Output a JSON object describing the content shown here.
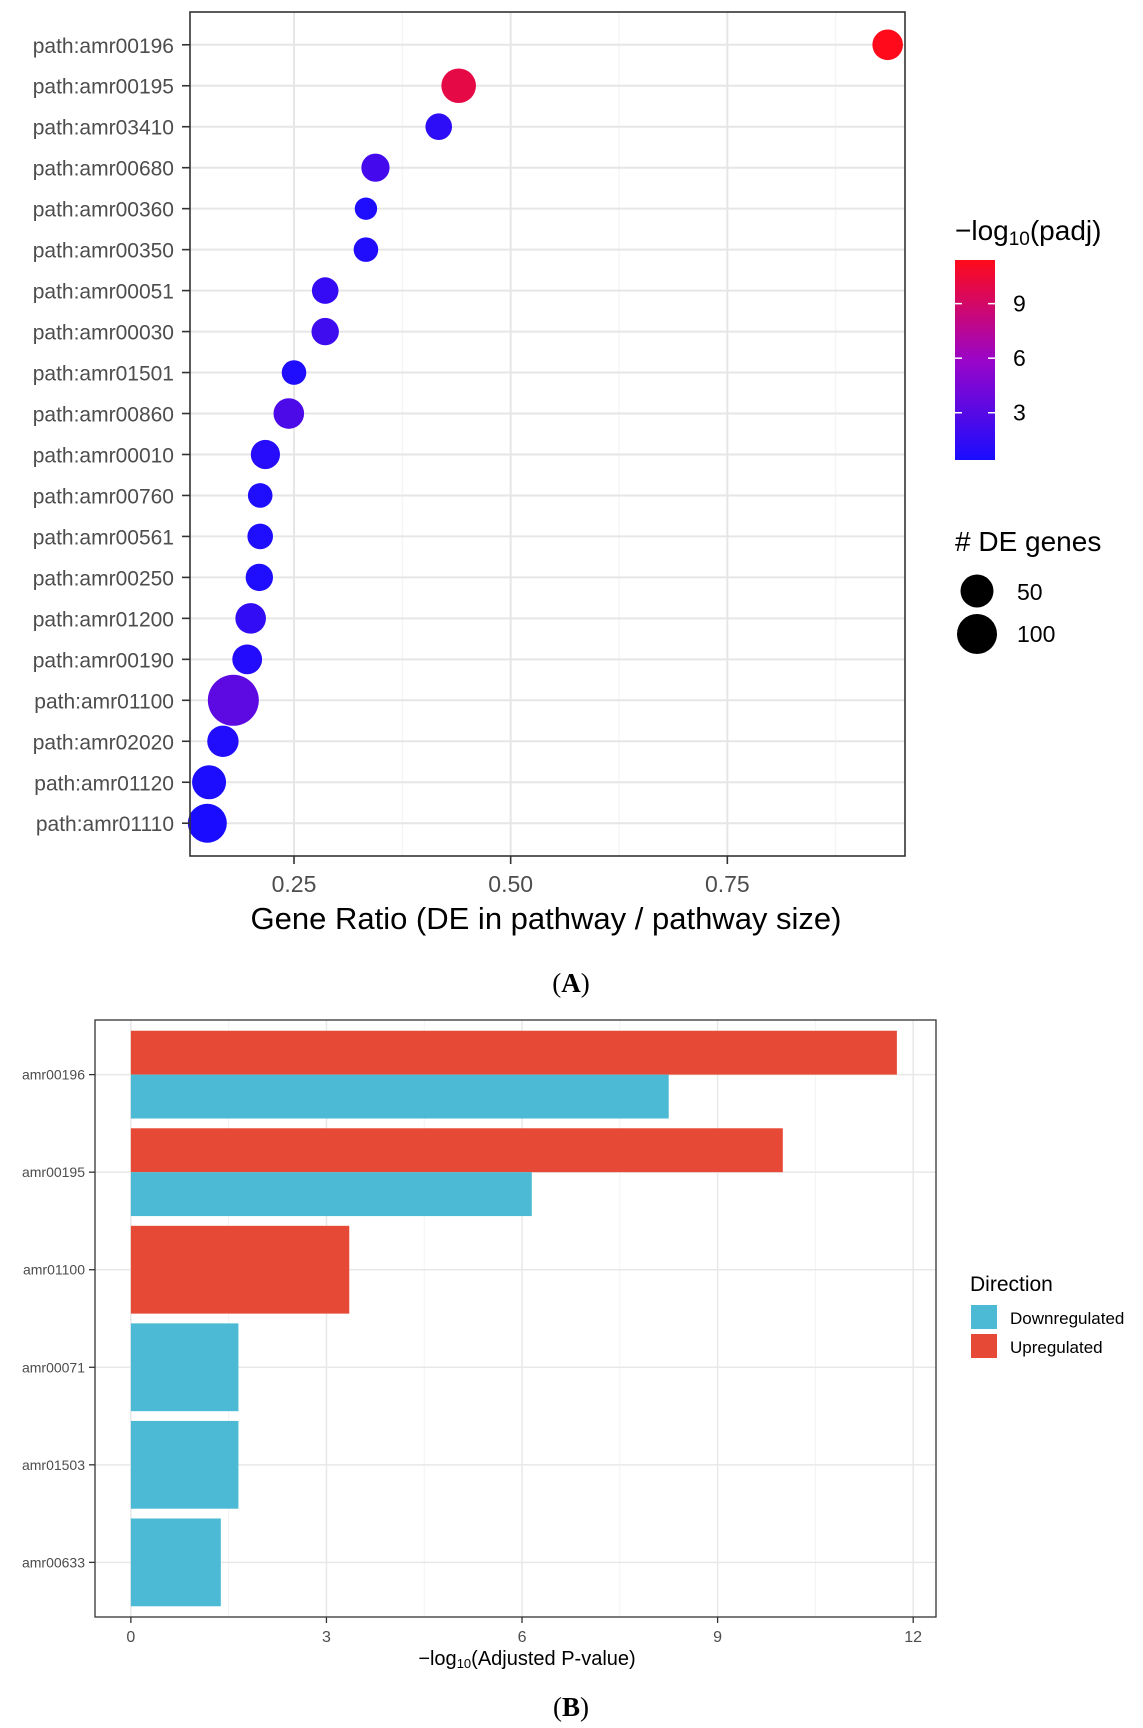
{
  "panel_a": {
    "panel_label": "A",
    "legend_color_title_prefix": "−log",
    "legend_color_title_sub": "10",
    "legend_color_title_suffix": "(padj)",
    "legend_color_ticks": [
      "9",
      "6",
      "3"
    ],
    "legend_size_title": "# DE genes",
    "legend_size_labels": [
      "50",
      "100"
    ]
  },
  "panel_b": {
    "panel_label": "B",
    "xlabel_prefix": "−log",
    "xlabel_sub": "10",
    "xlabel_suffix": "(Adjusted P-value)",
    "legend_title": "Direction",
    "legend_items": [
      "Downregulated",
      "Upregulated"
    ]
  },
  "colors": {
    "dot_low": "#1a0dff",
    "dot_high": "#ff0a1a",
    "downregulated": "#4cbad4",
    "upregulated": "#e64a36",
    "panel_border": "#333333",
    "grid": "#ebebeb"
  },
  "chart_data": [
    {
      "type": "scatter",
      "xlabel": "Gene Ratio (DE in pathway / pathway size)",
      "xticks": [
        "0.25",
        "0.50",
        "0.75"
      ],
      "xlim": [
        0.13,
        0.955
      ],
      "color_scale": {
        "title": "−log10(padj)",
        "range": [
          0.4,
          11.4
        ]
      },
      "size_scale": {
        "title": "# DE genes"
      },
      "grid": true,
      "legend": "right",
      "points": [
        {
          "label": "path:amr00196",
          "x": 0.935,
          "padj": 11.4,
          "genes": 28
        },
        {
          "label": "path:amr00195",
          "x": 0.44,
          "padj": 10.0,
          "genes": 40
        },
        {
          "label": "path:amr03410",
          "x": 0.417,
          "padj": 1.2,
          "genes": 18
        },
        {
          "label": "path:amr00680",
          "x": 0.344,
          "padj": 2.2,
          "genes": 22
        },
        {
          "label": "path:amr00360",
          "x": 0.333,
          "padj": 0.6,
          "genes": 10
        },
        {
          "label": "path:amr00350",
          "x": 0.333,
          "padj": 0.7,
          "genes": 14
        },
        {
          "label": "path:amr00051",
          "x": 0.286,
          "padj": 1.5,
          "genes": 18
        },
        {
          "label": "path:amr00030",
          "x": 0.286,
          "padj": 2.0,
          "genes": 20
        },
        {
          "label": "path:amr01501",
          "x": 0.25,
          "padj": 0.6,
          "genes": 14
        },
        {
          "label": "path:amr00860",
          "x": 0.244,
          "padj": 2.6,
          "genes": 28
        },
        {
          "label": "path:amr00010",
          "x": 0.217,
          "padj": 0.9,
          "genes": 24
        },
        {
          "label": "path:amr00760",
          "x": 0.211,
          "padj": 0.6,
          "genes": 14
        },
        {
          "label": "path:amr00561",
          "x": 0.211,
          "padj": 0.6,
          "genes": 16
        },
        {
          "label": "path:amr00250",
          "x": 0.21,
          "padj": 0.6,
          "genes": 20
        },
        {
          "label": "path:amr01200",
          "x": 0.2,
          "padj": 1.4,
          "genes": 28
        },
        {
          "label": "path:amr00190",
          "x": 0.196,
          "padj": 0.8,
          "genes": 26
        },
        {
          "label": "path:amr01100",
          "x": 0.18,
          "padj": 3.3,
          "genes": 110
        },
        {
          "label": "path:amr02020",
          "x": 0.168,
          "padj": 0.7,
          "genes": 30
        },
        {
          "label": "path:amr01120",
          "x": 0.152,
          "padj": 0.5,
          "genes": 38
        },
        {
          "label": "path:amr01110",
          "x": 0.15,
          "padj": 0.4,
          "genes": 55
        }
      ]
    },
    {
      "type": "bar",
      "orientation": "horizontal",
      "xlabel": "−log10(Adjusted P-value)",
      "xticks": [
        "0",
        "3",
        "6",
        "9",
        "12"
      ],
      "xlim": [
        -0.55,
        12.35
      ],
      "grid": true,
      "legend": "right",
      "categories": [
        "amr00196",
        "amr00195",
        "amr01100",
        "amr00071",
        "amr01503",
        "amr00633"
      ],
      "series": [
        {
          "name": "Upregulated",
          "values": [
            11.75,
            10.0,
            3.35,
            null,
            null,
            null
          ]
        },
        {
          "name": "Downregulated",
          "values": [
            8.25,
            6.15,
            null,
            1.65,
            1.65,
            1.38
          ]
        }
      ]
    }
  ]
}
